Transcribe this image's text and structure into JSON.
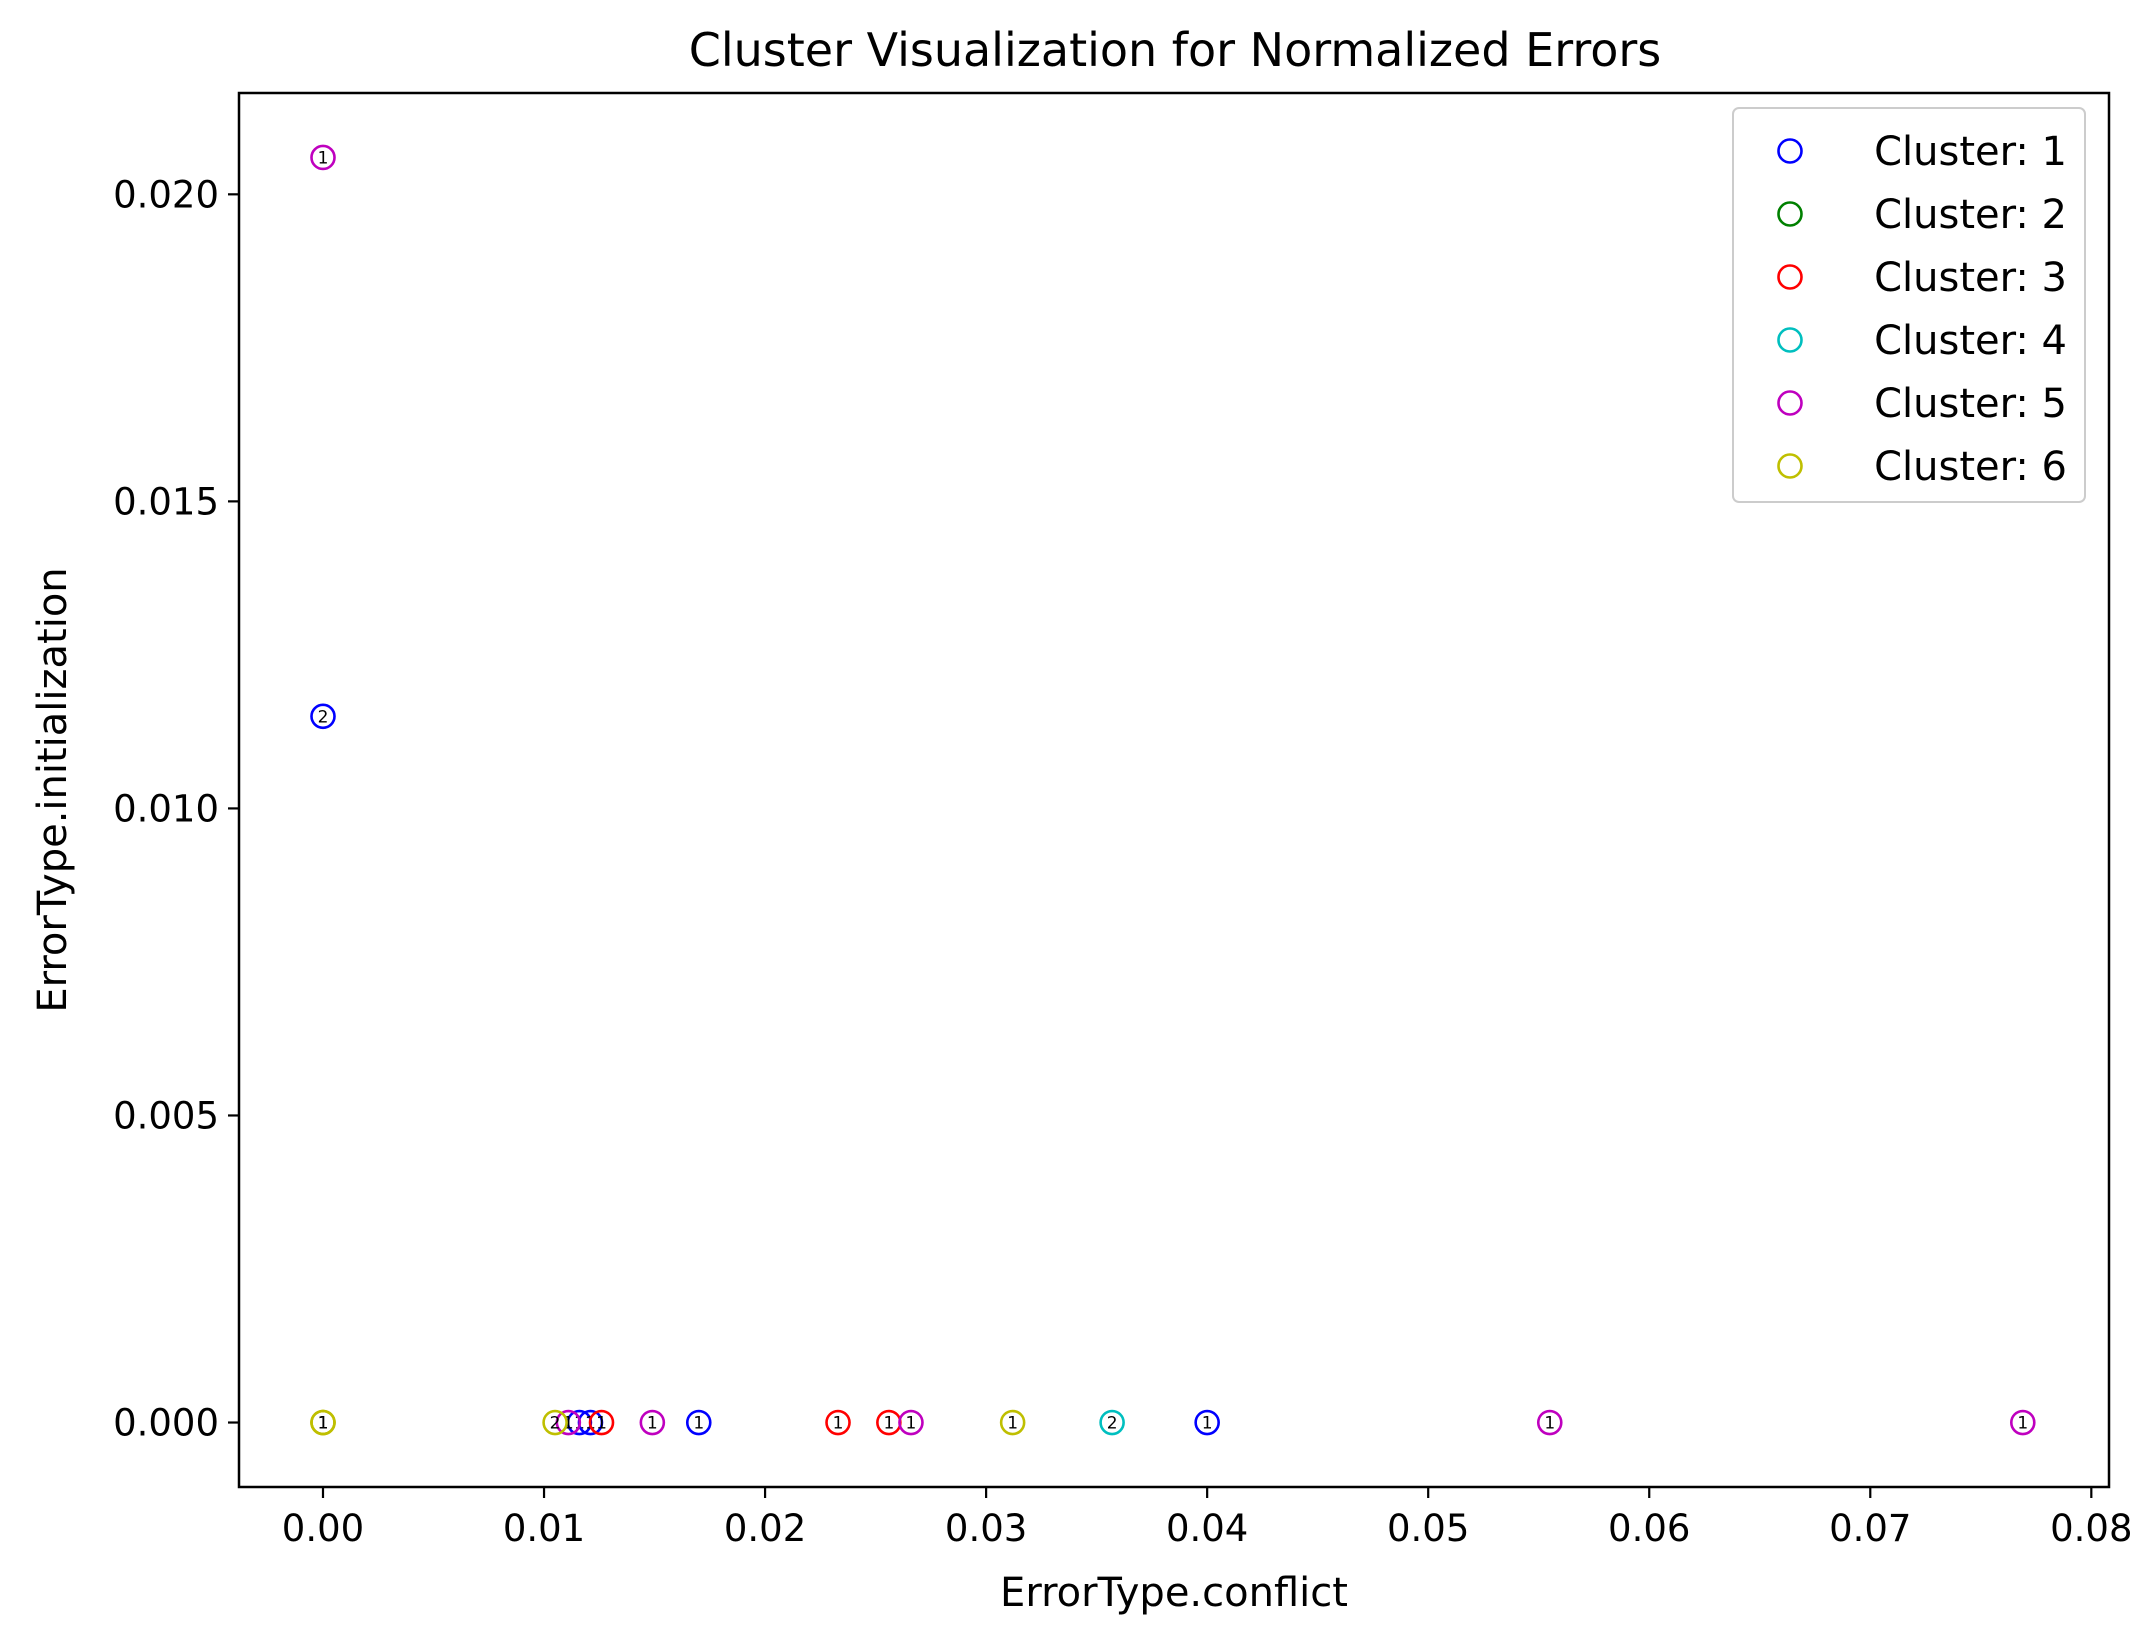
{
  "chart_data": {
    "type": "scatter",
    "title": "Cluster Visualization for Normalized Errors",
    "xlabel": "ErrorType.conflict",
    "ylabel": "ErrorType.initialization",
    "xlim": [
      -0.0038,
      0.0808
    ],
    "ylim": [
      -0.00105,
      0.02165
    ],
    "xticks": [
      0.0,
      0.01,
      0.02,
      0.03,
      0.04,
      0.05,
      0.06,
      0.07,
      0.08
    ],
    "xtick_labels": [
      "0.00",
      "0.01",
      "0.02",
      "0.03",
      "0.04",
      "0.05",
      "0.06",
      "0.07",
      "0.08"
    ],
    "yticks": [
      0.0,
      0.005,
      0.01,
      0.015,
      0.02
    ],
    "ytick_labels": [
      "0.000",
      "0.005",
      "0.010",
      "0.015",
      "0.020"
    ],
    "grid": false,
    "legend_position": "top-right",
    "marker": "hollow-circle",
    "series": [
      {
        "name": "Cluster: 1",
        "color": "#0000ff",
        "points": [
          {
            "x": 0.0,
            "y": 0.0115,
            "label": "2"
          },
          {
            "x": 0.0116,
            "y": 0.0,
            "label": "1"
          },
          {
            "x": 0.0121,
            "y": 0.0,
            "label": "1"
          },
          {
            "x": 0.017,
            "y": 0.0,
            "label": "1"
          },
          {
            "x": 0.04,
            "y": 0.0,
            "label": "1"
          }
        ]
      },
      {
        "name": "Cluster: 2",
        "color": "#008000",
        "points": []
      },
      {
        "name": "Cluster: 3",
        "color": "#ff0000",
        "points": [
          {
            "x": 0.0126,
            "y": 0.0,
            "label": "1"
          },
          {
            "x": 0.0233,
            "y": 0.0,
            "label": "1"
          },
          {
            "x": 0.0256,
            "y": 0.0,
            "label": "1"
          }
        ]
      },
      {
        "name": "Cluster: 4",
        "color": "#00bfbf",
        "points": [
          {
            "x": 0.0357,
            "y": 0.0,
            "label": "2"
          }
        ]
      },
      {
        "name": "Cluster: 5",
        "color": "#bf00bf",
        "points": [
          {
            "x": 0.0,
            "y": 0.0206,
            "label": "1"
          },
          {
            "x": 0.0111,
            "y": 0.0,
            "label": "1"
          },
          {
            "x": 0.0149,
            "y": 0.0,
            "label": "1"
          },
          {
            "x": 0.0266,
            "y": 0.0,
            "label": "1"
          },
          {
            "x": 0.0555,
            "y": 0.0,
            "label": "1"
          },
          {
            "x": 0.0769,
            "y": 0.0,
            "label": "1"
          }
        ]
      },
      {
        "name": "Cluster: 6",
        "color": "#bfbf00",
        "points": [
          {
            "x": 0.0,
            "y": 0.0,
            "label": "1"
          },
          {
            "x": 0.0,
            "y": 0.0,
            "label": "1"
          },
          {
            "x": 0.0,
            "y": 0.0,
            "label": "1"
          },
          {
            "x": 0.0105,
            "y": 0.0,
            "label": "2"
          },
          {
            "x": 0.0312,
            "y": 0.0,
            "label": "1"
          }
        ]
      }
    ]
  }
}
